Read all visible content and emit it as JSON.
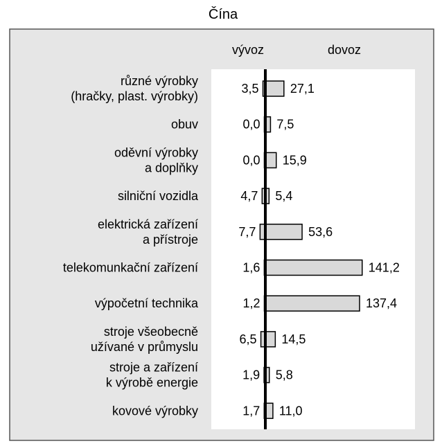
{
  "chart_data": {
    "type": "bar",
    "title": "Čína",
    "series": [
      {
        "name": "vývoz",
        "values": [
          3.5,
          0.0,
          0.0,
          4.7,
          7.7,
          1.6,
          1.2,
          6.5,
          1.9,
          1.7
        ]
      },
      {
        "name": "dovoz",
        "values": [
          27.1,
          7.5,
          15.9,
          5.4,
          53.6,
          141.2,
          137.4,
          14.5,
          5.8,
          11.0
        ]
      }
    ],
    "categories": [
      [
        "různé výrobky",
        "(hračky, plast. výrobky)"
      ],
      [
        "obuv"
      ],
      [
        "oděvní výrobky",
        "a doplňky"
      ],
      [
        "silniční vozidla"
      ],
      [
        "elektrická zařízení",
        "a přístroje"
      ],
      [
        "telekomunkační zařízení"
      ],
      [
        "výpočetní technika"
      ],
      [
        "stroje všeobecně",
        "užívané v průmyslu"
      ],
      [
        "stroje a zařízení",
        "k výrobě energie"
      ],
      [
        "kovové výrobky"
      ]
    ],
    "value_labels": {
      "vyvoz": [
        "3,5",
        "0,0",
        "0,0",
        "4,7",
        "7,7",
        "1,6",
        "1,2",
        "6,5",
        "1,9",
        "1,7"
      ],
      "dovoz": [
        "27,1",
        "7,5",
        "15,9",
        "5,4",
        "53,6",
        "141,2",
        "137,4",
        "14,5",
        "5,8",
        "11,0"
      ]
    },
    "colors": {
      "bar_fill": "#d9d9d9",
      "outer_background": "#e6e6e6",
      "plot_background": "#ffffff",
      "axis": "#000000"
    },
    "grid": false
  }
}
